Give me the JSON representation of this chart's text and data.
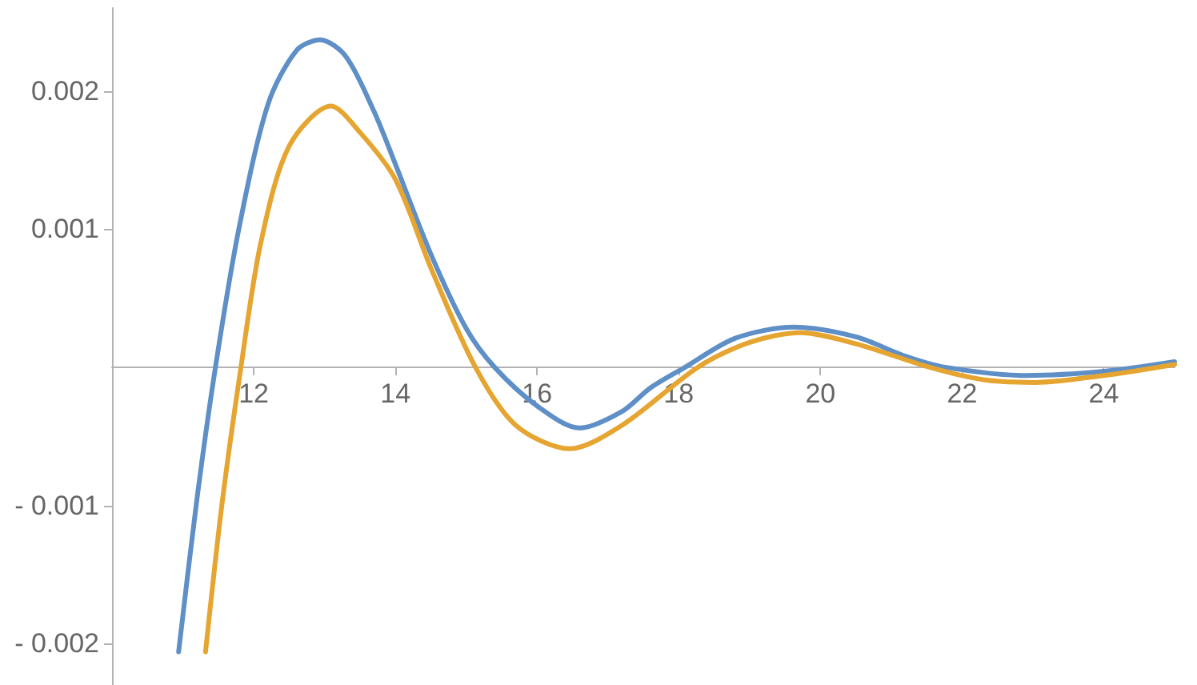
{
  "chart_data": {
    "type": "line",
    "xlim": [
      10,
      25
    ],
    "xticks": [
      12,
      14,
      16,
      18,
      20,
      22,
      24
    ],
    "ylim": [
      -0.0023,
      0.0026
    ],
    "yticks": [
      {
        "value": -0.002,
        "label": "- 0.002"
      },
      {
        "value": -0.001,
        "label": "- 0.001"
      },
      0.001,
      0.002
    ],
    "grid": false,
    "marker": "none",
    "line_style": "solid",
    "series": [
      {
        "color": "#5e8fc7",
        "x": [
          10.94,
          11.2,
          11.46,
          11.79,
          12.2,
          12.6,
          12.94,
          13.3,
          13.7,
          14,
          14.5,
          15,
          15.4,
          16,
          16.6,
          17.2,
          17.6,
          18.09,
          18.8,
          19.63,
          20.5,
          21.2,
          21.76,
          22.9,
          24,
          25
        ],
        "values": [
          -0.00206,
          -0.00095,
          0,
          0.001,
          0.0019,
          0.00229,
          0.00237,
          0.00225,
          0.00185,
          0.00147,
          0.00082,
          0.00028,
          0,
          -0.00028,
          -0.00044,
          -0.00032,
          -0.00015,
          0,
          0.00021,
          0.00029,
          0.00022,
          8e-05,
          0,
          -6e-05,
          -3e-05,
          4e-05
        ]
      },
      {
        "color": "#e5a530",
        "x": [
          11.32,
          11.55,
          11.82,
          12.1,
          12.5,
          13.09,
          13.5,
          14,
          14.5,
          15.13,
          15.7,
          16.46,
          17.2,
          18.27,
          19,
          19.72,
          20.5,
          21.54,
          22.3,
          23.03,
          24,
          25
        ],
        "values": [
          -0.00206,
          -0.001,
          0,
          0.0009,
          0.0016,
          0.00189,
          0.0017,
          0.00136,
          0.00072,
          0,
          -0.00042,
          -0.00059,
          -0.00042,
          0,
          0.00018,
          0.00025,
          0.00017,
          0,
          -9e-05,
          -0.00011,
          -6e-05,
          2e-05
        ]
      }
    ]
  }
}
